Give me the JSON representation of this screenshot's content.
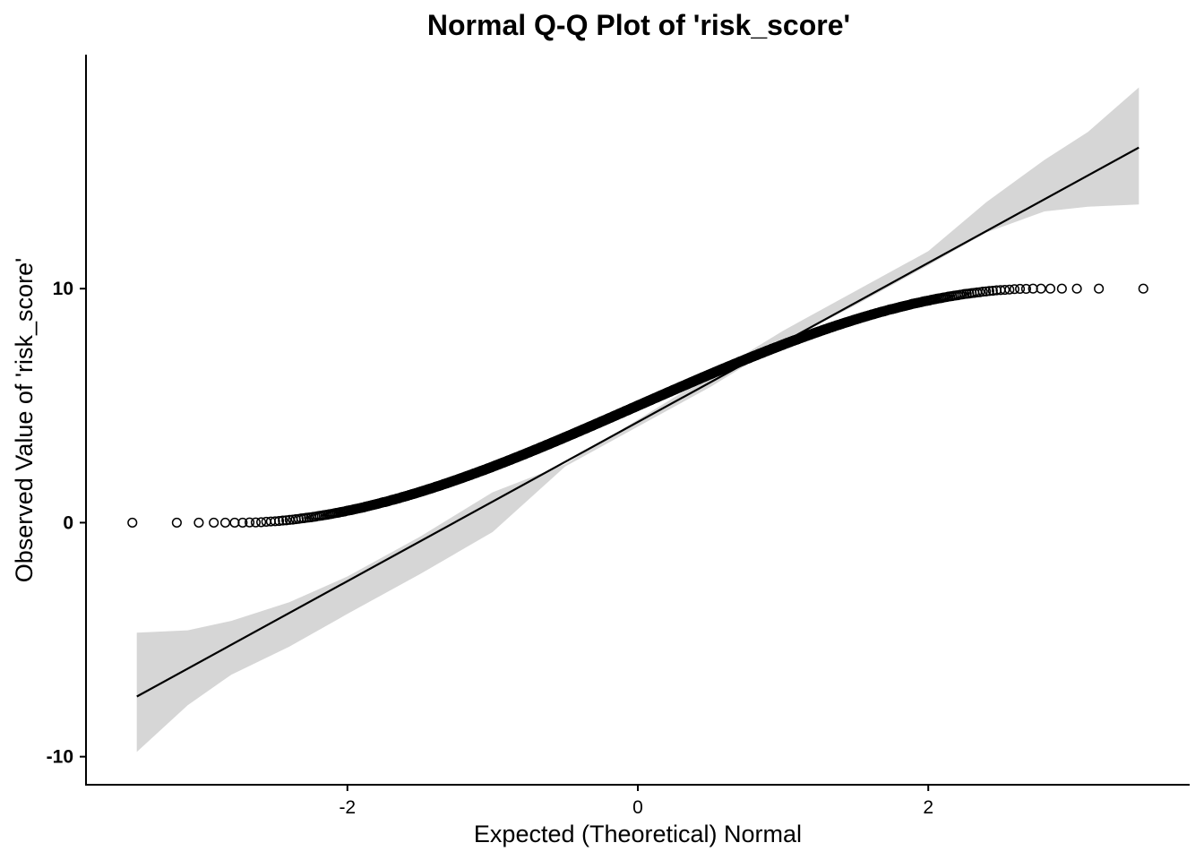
{
  "chart_data": {
    "type": "scatter",
    "subtype": "normal-qq-plot",
    "title": "Normal Q-Q Plot of 'risk_score'",
    "xlabel": "Expected (Theoretical) Normal",
    "ylabel": "Observed Value of 'risk_score'",
    "xlim": [
      -3.8,
      3.8
    ],
    "ylim": [
      -11.2,
      20
    ],
    "x_ticks": [
      {
        "value": -2,
        "label": "-2"
      },
      {
        "value": 0,
        "label": "0"
      },
      {
        "value": 2,
        "label": "2"
      }
    ],
    "y_ticks": [
      {
        "value": -10,
        "label": "-10"
      },
      {
        "value": 0,
        "label": "0"
      },
      {
        "value": 10,
        "label": "10"
      }
    ],
    "grid": false,
    "legend": "none",
    "sample_distribution": "bounded 0 to 10, S-shaped against normal quantiles",
    "sample_range": [
      0,
      10
    ],
    "approx_sample_size": 2000,
    "reference_line": {
      "slope": 3.4,
      "intercept": 4.3,
      "x_range": [
        -3.45,
        3.45
      ]
    },
    "confidence_band": {
      "x": [
        -3.45,
        -3.1,
        -2.8,
        -2.4,
        -2.0,
        -1.5,
        -1.0,
        -0.5,
        0,
        0.5,
        1.0,
        1.5,
        2.0,
        2.4,
        2.8,
        3.1,
        3.45
      ],
      "lower": [
        -9.8,
        -7.8,
        -6.5,
        -5.3,
        -3.9,
        -2.2,
        -0.4,
        2.4,
        4.1,
        5.8,
        7.7,
        9.3,
        11.0,
        12.4,
        13.3,
        13.5,
        13.6
      ],
      "upper": [
        -4.7,
        -4.6,
        -4.2,
        -3.4,
        -2.3,
        -0.6,
        1.3,
        2.5,
        4.4,
        6.3,
        8.2,
        9.9,
        11.6,
        13.7,
        15.5,
        16.7,
        18.6
      ]
    },
    "colors": {
      "band": "#d6d6d6",
      "line": "#000000",
      "points": "#000000"
    }
  }
}
